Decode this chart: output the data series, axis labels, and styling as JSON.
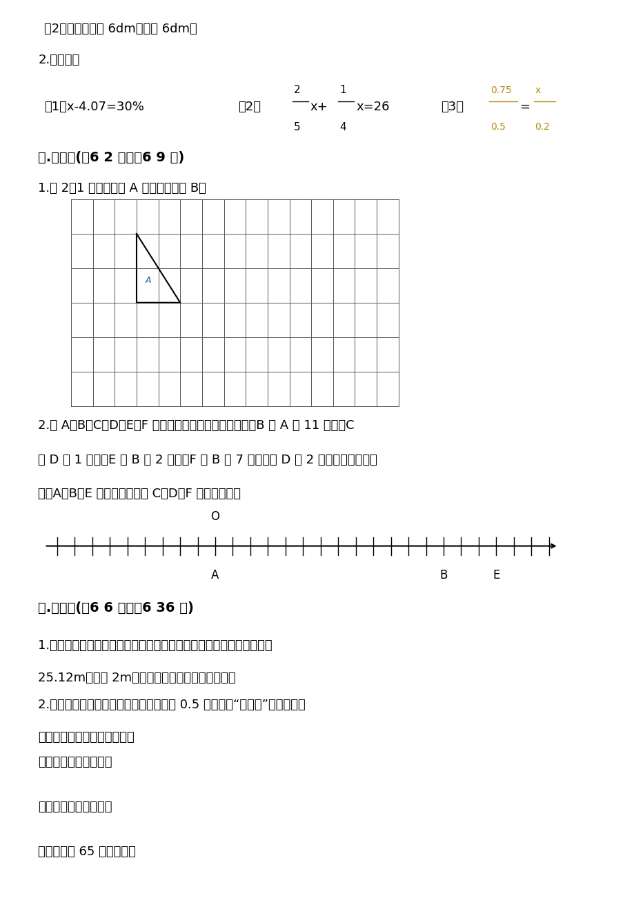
{
  "bg_color": "#ffffff",
  "text_color": "#000000",
  "line1": "（2）底面直径是 6dm，高是 6dm。",
  "line2": "2.解方程。",
  "eq1": "（1）x-4.07=30%",
  "eq2_frac1_num": "2",
  "eq2_frac1_den": "5",
  "eq2_frac2_num": "1",
  "eq2_frac2_den": "4",
  "eq3_frac1_num": "0.75",
  "eq3_frac1_den": "0.5",
  "eq3_frac2_num": "x",
  "eq3_frac2_den": "0.2",
  "section5": "五.作图题(兲6 2 题，兲6 9 分)",
  "draw_q1": "1.按 2：1 画出三角形 A 放大后的图形 B。",
  "draw_q2_line1": "2.有 A、B、C、D、E、F 六个小孩比身高，比的结果是：B 比 A 高 11 厘米，C",
  "draw_q2_line2": "比 D 矮 1 厘米，E 比 B 高 2 厘米，F 比 B 矮 7 厘米，比 D 矮 2 厘米，在一条数轴",
  "draw_q2_line3": "上，A、B、E 已标出，请你将 C、D、F 也标在图上。",
  "section6": "六.解答题(兲6 6 题，兲6 36 分)",
  "ans_q1_line1": "1.一个圆柱形水池，在水池内壁和底部都镁上瓷砖，水池内部底面周长",
  "ans_q1_line2": "25.12m，池深 2m，镁瓷砖的面积是多少平方米？",
  "ans_q2_line1": "2.三家文具店中，某种练习本的价格都是 0.5 元／本。“儿童节”那天，三店",
  "ans_q2_line2": "分别推出了不同的优惠措施。",
  "store1": "中天店：一律九折优惠",
  "store2": "家和店：买五本送一本",
  "store3": "丰美店：满 65 元八折优惠"
}
